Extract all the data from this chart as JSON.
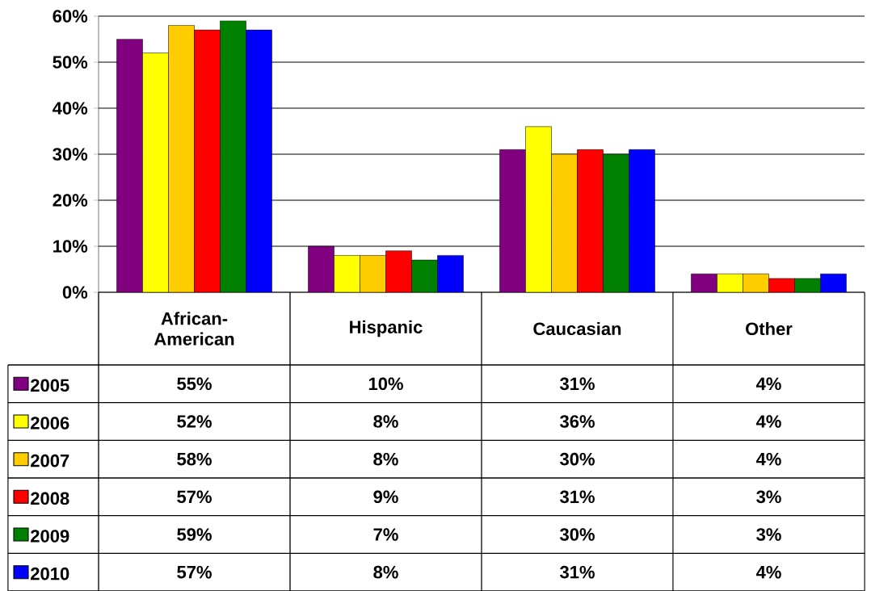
{
  "chart_data": {
    "type": "bar",
    "categories": [
      "African-American",
      "Hispanic",
      "Caucasian",
      "Other"
    ],
    "series": [
      {
        "name": "2005",
        "color": "#800080",
        "values": [
          55,
          10,
          31,
          4
        ],
        "value_labels": [
          "55%",
          "10%",
          "31%",
          "4%"
        ]
      },
      {
        "name": "2006",
        "color": "#ffff00",
        "values": [
          52,
          8,
          36,
          4
        ],
        "value_labels": [
          "52%",
          "8%",
          "36%",
          "4%"
        ]
      },
      {
        "name": "2007",
        "color": "#ffcc00",
        "values": [
          58,
          8,
          30,
          4
        ],
        "value_labels": [
          "58%",
          "8%",
          "30%",
          "4%"
        ]
      },
      {
        "name": "2008",
        "color": "#ff0000",
        "values": [
          57,
          9,
          31,
          3
        ],
        "value_labels": [
          "57%",
          "9%",
          "31%",
          "3%"
        ]
      },
      {
        "name": "2009",
        "color": "#008000",
        "values": [
          59,
          7,
          30,
          3
        ],
        "value_labels": [
          "59%",
          "7%",
          "30%",
          "3%"
        ]
      },
      {
        "name": "2010",
        "color": "#0000ff",
        "values": [
          57,
          8,
          31,
          4
        ],
        "value_labels": [
          "57%",
          "8%",
          "31%",
          "4%"
        ]
      }
    ],
    "ylim": [
      0,
      60
    ],
    "yticks": [
      {
        "value": 0,
        "label": "0%"
      },
      {
        "value": 10,
        "label": "10%"
      },
      {
        "value": 20,
        "label": "20%"
      },
      {
        "value": 30,
        "label": "30%"
      },
      {
        "value": 40,
        "label": "40%"
      },
      {
        "value": 50,
        "label": "50%"
      },
      {
        "value": 60,
        "label": "60%"
      }
    ],
    "grid": "y",
    "legend": "bottom"
  }
}
